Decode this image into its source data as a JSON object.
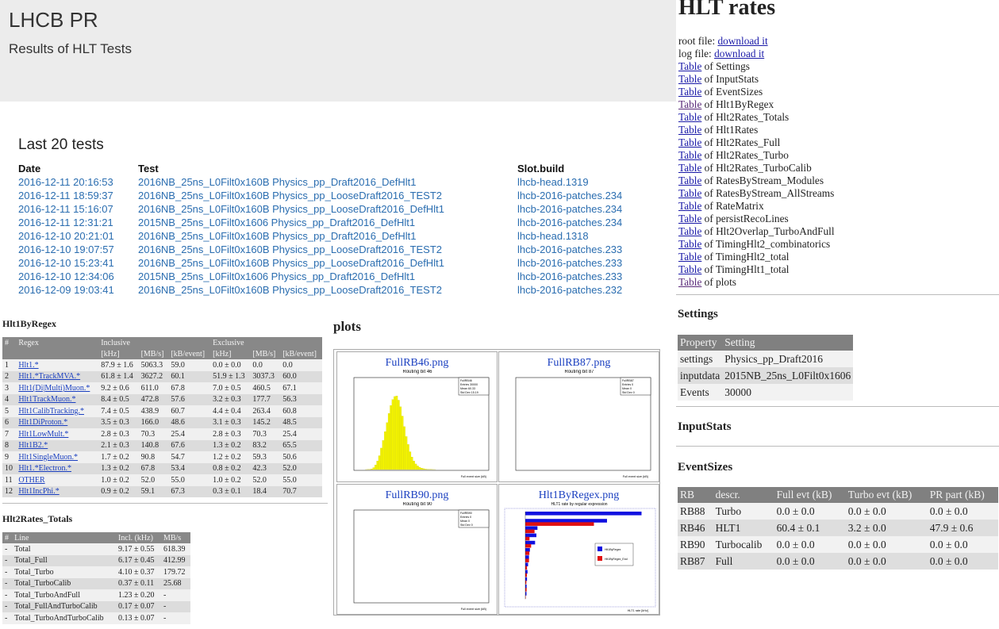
{
  "header": {
    "title": "LHCB PR",
    "subtitle": "Results of HLT Tests"
  },
  "tests": {
    "heading": "Last 20 tests",
    "columns": [
      "Date",
      "Test",
      "Slot.build"
    ],
    "rows": [
      [
        "2016-12-11 20:16:53",
        "2016NB_25ns_L0Filt0x160B Physics_pp_Draft2016_DefHlt1",
        "lhcb-head.1319"
      ],
      [
        "2016-12-11 18:59:37",
        "2016NB_25ns_L0Filt0x160B Physics_pp_LooseDraft2016_TEST2",
        "lhcb-2016-patches.234"
      ],
      [
        "2016-12-11 15:16:07",
        "2016NB_25ns_L0Filt0x160B Physics_pp_LooseDraft2016_DefHlt1",
        "lhcb-2016-patches.234"
      ],
      [
        "2016-12-11 12:31:21",
        "2015NB_25ns_L0Filt0x1606 Physics_pp_Draft2016_DefHlt1",
        "lhcb-2016-patches.234"
      ],
      [
        "2016-12-10 20:21:01",
        "2016NB_25ns_L0Filt0x160B Physics_pp_Draft2016_DefHlt1",
        "lhcb-head.1318"
      ],
      [
        "2016-12-10 19:07:57",
        "2016NB_25ns_L0Filt0x160B Physics_pp_LooseDraft2016_TEST2",
        "lhcb-2016-patches.233"
      ],
      [
        "2016-12-10 15:23:41",
        "2016NB_25ns_L0Filt0x160B Physics_pp_LooseDraft2016_DefHlt1",
        "lhcb-2016-patches.233"
      ],
      [
        "2016-12-10 12:34:06",
        "2015NB_25ns_L0Filt0x1606 Physics_pp_Draft2016_DefHlt1",
        "lhcb-2016-patches.233"
      ],
      [
        "2016-12-09 19:03:41",
        "2016NB_25ns_L0Filt0x160B Physics_pp_LooseDraft2016_TEST2",
        "lhcb-2016-patches.232"
      ]
    ]
  },
  "hlt1": {
    "title": "Hlt1ByRegex",
    "head1": [
      "#",
      "Regex",
      "Inclusive",
      "",
      "",
      "Exclusive",
      "",
      ""
    ],
    "head2": [
      "",
      "",
      "[kHz]",
      "[MB/s]",
      "[kB/event]",
      "[kHz]",
      "[MB/s]",
      "[kB/event]"
    ],
    "rows": [
      [
        "1",
        "Hlt1.*",
        "87.9 ± 1.6",
        "5063.3",
        "59.0",
        "0.0 ± 0.0",
        "0.0",
        "0.0"
      ],
      [
        "2",
        "Hlt1.*TrackMVA.*",
        "61.8 ± 1.4",
        "3627.2",
        "60.1",
        "51.9 ± 1.3",
        "3037.3",
        "60.0"
      ],
      [
        "3",
        "Hlt1(Di|Multi)Muon.*",
        "9.2 ± 0.6",
        "611.0",
        "67.8",
        "7.0 ± 0.5",
        "460.5",
        "67.1"
      ],
      [
        "4",
        "Hlt1TrackMuon.*",
        "8.4 ± 0.5",
        "472.8",
        "57.6",
        "3.2 ± 0.3",
        "177.7",
        "56.3"
      ],
      [
        "5",
        "Hlt1CalibTracking.*",
        "7.4 ± 0.5",
        "438.9",
        "60.7",
        "4.4 ± 0.4",
        "263.4",
        "60.8"
      ],
      [
        "6",
        "Hlt1DiProton.*",
        "3.5 ± 0.3",
        "166.0",
        "48.6",
        "3.1 ± 0.3",
        "145.2",
        "48.5"
      ],
      [
        "7",
        "Hlt1LowMult.*",
        "2.8 ± 0.3",
        "70.3",
        "25.4",
        "2.8 ± 0.3",
        "70.3",
        "25.4"
      ],
      [
        "8",
        "Hlt1B2.*",
        "2.1 ± 0.3",
        "140.8",
        "67.6",
        "1.3 ± 0.2",
        "83.2",
        "65.5"
      ],
      [
        "9",
        "Hlt1SingleMuon.*",
        "1.7 ± 0.2",
        "90.8",
        "54.7",
        "1.2 ± 0.2",
        "59.3",
        "50.6"
      ],
      [
        "10",
        "Hlt1.*Electron.*",
        "1.3 ± 0.2",
        "67.8",
        "53.4",
        "0.8 ± 0.2",
        "42.3",
        "52.0"
      ],
      [
        "11",
        "OTHER",
        "1.0 ± 0.2",
        "52.0",
        "55.0",
        "1.0 ± 0.2",
        "52.0",
        "55.0"
      ],
      [
        "12",
        "Hlt1IncPhi.*",
        "0.9 ± 0.2",
        "59.1",
        "67.3",
        "0.3 ± 0.1",
        "18.4",
        "70.7"
      ]
    ]
  },
  "hlt2": {
    "title": "Hlt2Rates_Totals",
    "columns": [
      "#",
      "Line",
      "Incl. (kHz)",
      "MB/s"
    ],
    "rows": [
      [
        "-",
        "Total",
        "9.17 ± 0.55",
        "618.39"
      ],
      [
        "-",
        "Total_Full",
        "6.17 ± 0.45",
        "412.99"
      ],
      [
        "-",
        "Total_Turbo",
        "4.10 ± 0.37",
        "179.72"
      ],
      [
        "-",
        "Total_TurboCalib",
        "0.37 ± 0.11",
        "25.68"
      ],
      [
        "-",
        "Total_TurboAndFull",
        "1.23 ± 0.20",
        "-"
      ],
      [
        "-",
        "Total_FullAndTurboCalib",
        "0.17 ± 0.07",
        "-"
      ],
      [
        "-",
        "Total_TurboAndTurboCalib",
        "0.13 ± 0.07",
        "-"
      ]
    ]
  },
  "plots": {
    "title": "plots",
    "items": [
      {
        "title": "FullRB46.png",
        "inner": "Routing bit 46",
        "stats": [
          "FullRB46",
          "Entries 30000",
          "Mean 60.33",
          "Std Dev 15.19"
        ]
      },
      {
        "title": "FullRB87.png",
        "inner": "Routing bit 87",
        "stats": [
          "FullRB87",
          "Entries 0",
          "Mean 0",
          "Std Dev 0"
        ]
      },
      {
        "title": "FullRB90.png",
        "inner": "Routing bit 90",
        "stats": [
          "FullRB90",
          "Entries 0",
          "Mean 0",
          "Std Dev 0"
        ]
      },
      {
        "title": "Hlt1ByRegex.png",
        "inner": "HLT1 rate by regular expression",
        "stats": [
          "Hlt1ByRegex",
          "Hlt1ByRegex_Excl"
        ]
      }
    ],
    "xlabel": "Full event size (kB)",
    "xlabel_hlt": "HLT1 rate [kHz]",
    "rb46_hist": [
      0,
      1,
      3,
      8,
      20,
      60,
      140,
      260,
      420,
      650,
      880,
      1150,
      1420,
      1700,
      1940,
      2120,
      2210,
      2230,
      2100,
      1900,
      1620,
      1300,
      1000,
      760,
      540,
      380,
      260,
      170,
      110,
      70,
      45,
      28,
      17,
      10,
      6,
      4,
      2,
      1
    ],
    "hlt_incl": [
      87.9,
      61.8,
      9.2,
      8.4,
      7.4,
      3.5,
      2.8,
      2.1,
      1.7,
      1.3,
      1.0,
      0.9
    ],
    "hlt_excl": [
      0.0,
      51.9,
      7.0,
      3.2,
      4.4,
      3.1,
      2.8,
      1.3,
      1.2,
      0.8,
      1.0,
      0.3
    ],
    "colors": {
      "hist": "#f2f200",
      "incl": "#1010e0",
      "excl": "#e01010"
    }
  },
  "right": {
    "title": "HLT rates",
    "root_label": "root file:",
    "log_label": "log file:",
    "download": "download it",
    "table_word": "Table",
    "of_word": "of",
    "tables": [
      "Settings",
      "InputStats",
      "EventSizes",
      "Hlt1ByRegex",
      "Hlt2Rates_Totals",
      "Hlt1Rates",
      "Hlt2Rates_Full",
      "Hlt2Rates_Turbo",
      "Hlt2Rates_TurboCalib",
      "RatesByStream_Modules",
      "RatesByStream_AllStreams",
      "RateMatrix",
      "persistRecoLines",
      "Hlt2Overlap_TurboAndFull",
      "TimingHlt2_combinatorics",
      "TimingHlt2_total",
      "TimingHlt1_total",
      "plots"
    ],
    "settings": {
      "title": "Settings",
      "columns": [
        "Property",
        "Setting"
      ],
      "rows": [
        [
          "settings",
          "Physics_pp_Draft2016"
        ],
        [
          "inputdata",
          "2015NB_25ns_L0Filt0x1606"
        ],
        [
          "Events",
          "30000"
        ]
      ]
    },
    "inputstats_title": "InputStats",
    "eventsizes": {
      "title": "EventSizes",
      "columns": [
        "RB",
        "descr.",
        "Full evt (kB)",
        "Turbo evt (kB)",
        "PR part (kB)"
      ],
      "rows": [
        [
          "RB88",
          "Turbo",
          "0.0 ± 0.0",
          "0.0 ± 0.0",
          "0.0 ± 0.0"
        ],
        [
          "RB46",
          "HLT1",
          "60.4 ± 0.1",
          "3.2 ± 0.0",
          "47.9 ± 0.6"
        ],
        [
          "RB90",
          "Turbocalib",
          "0.0 ± 0.0",
          "0.0 ± 0.0",
          "0.0 ± 0.0"
        ],
        [
          "RB87",
          "Full",
          "0.0 ± 0.0",
          "0.0 ± 0.0",
          "0.0 ± 0.0"
        ]
      ]
    }
  }
}
